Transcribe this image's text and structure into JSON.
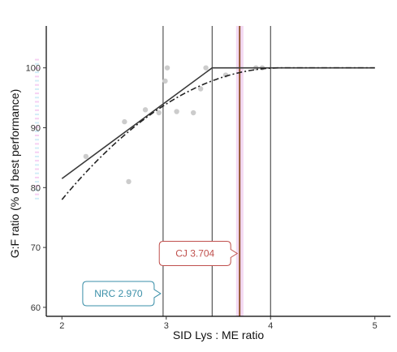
{
  "chart_data": {
    "type": "scatter",
    "xlabel": "SID Lys : ME ratio",
    "ylabel": "G:F ratio (% of best performance)",
    "xlim": [
      1.85,
      5.15
    ],
    "ylim": [
      58.5,
      107
    ],
    "x_ticks": [
      "2",
      "3",
      "4",
      "5"
    ],
    "y_ticks": [
      "60",
      "70",
      "80",
      "90",
      "100"
    ],
    "grid": false,
    "legend": "none",
    "points": [
      {
        "x": 2.23,
        "y": 85.2
      },
      {
        "x": 2.6,
        "y": 91.0
      },
      {
        "x": 2.64,
        "y": 81.0
      },
      {
        "x": 2.8,
        "y": 93.0
      },
      {
        "x": 2.93,
        "y": 92.5
      },
      {
        "x": 2.99,
        "y": 97.8
      },
      {
        "x": 3.01,
        "y": 100.0
      },
      {
        "x": 3.1,
        "y": 92.7
      },
      {
        "x": 3.26,
        "y": 92.5
      },
      {
        "x": 3.33,
        "y": 96.5
      },
      {
        "x": 3.38,
        "y": 100.0
      },
      {
        "x": 3.57,
        "y": 98.8
      },
      {
        "x": 3.86,
        "y": 100.0
      },
      {
        "x": 3.92,
        "y": 100.0
      }
    ],
    "broken_line": [
      {
        "x": 2.0,
        "y": 81.5
      },
      {
        "x": 3.44,
        "y": 100.0
      },
      {
        "x": 5.0,
        "y": 100.0
      }
    ],
    "quadratic_curve": {
      "x_start": 2.0,
      "x_end": 5.0,
      "x_peak": 4.1,
      "y_peak": 100.0,
      "y_at_start": 78.0
    },
    "reference_lines": [
      {
        "x": 2.97,
        "color": "#333333"
      },
      {
        "x": 3.44,
        "color": "#333333"
      },
      {
        "x": 4.0,
        "color": "#333333"
      },
      {
        "x": 3.704,
        "color": "#8b4a1c",
        "band": [
          3.67,
          3.74
        ],
        "band_color": "#f3d9f3"
      }
    ],
    "annotations": [
      {
        "text": "CJ 3.704",
        "x": 3.704,
        "y": 69,
        "color": "#c0504d",
        "pointer": "right"
      },
      {
        "text": "NRC 2.970",
        "x": 2.97,
        "y": 62.3,
        "color": "#3a8fa8",
        "pointer": "right"
      }
    ],
    "colors": {
      "points": "#cccccc",
      "lines": "#3a3a3a",
      "cj": "#c0504d",
      "nrc": "#3a8fa8"
    }
  }
}
